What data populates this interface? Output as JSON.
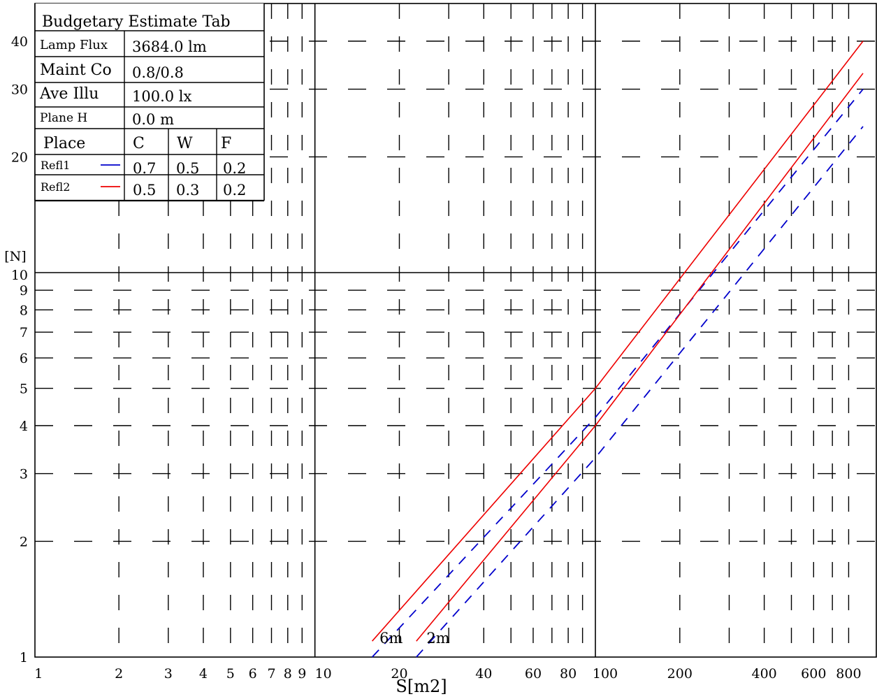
{
  "chart_data": {
    "type": "line",
    "title": "",
    "xlabel": "S[m2]",
    "ylabel": "[N]",
    "x_scale": "log",
    "y_scale": "log",
    "xlim": [
      1,
      900
    ],
    "ylim": [
      1,
      45
    ],
    "grid": true,
    "x_ticks": [
      1,
      2,
      3,
      4,
      5,
      6,
      7,
      8,
      9,
      10,
      20,
      40,
      60,
      80,
      100,
      200,
      400,
      600,
      800
    ],
    "y_ticks": [
      1,
      2,
      3,
      4,
      5,
      6,
      7,
      8,
      9,
      10,
      20,
      30,
      40
    ],
    "series": [
      {
        "name": "Refl1",
        "color": "#0000cc",
        "style": "dashed",
        "curve_label": "6m",
        "x": [
          16,
          100,
          900
        ],
        "y": [
          1,
          4.2,
          30
        ]
      },
      {
        "name": "Refl1",
        "color": "#0000cc",
        "style": "dashed",
        "curve_label": "2m",
        "x": [
          23,
          100,
          900
        ],
        "y": [
          1,
          3.3,
          24
        ]
      },
      {
        "name": "Refl2",
        "color": "#ee0000",
        "style": "solid",
        "curve_label": "6m",
        "x": [
          16,
          100,
          900
        ],
        "y": [
          1.1,
          5,
          40
        ]
      },
      {
        "name": "Refl2",
        "color": "#ee0000",
        "style": "solid",
        "curve_label": "2m",
        "x": [
          23,
          100,
          900
        ],
        "y": [
          1.1,
          4,
          33
        ]
      }
    ],
    "curve_labels": [
      {
        "text": "6m",
        "x": 17,
        "y": 1.08
      },
      {
        "text": "2m",
        "x": 25,
        "y": 1.08
      }
    ]
  },
  "legend_table": {
    "title": "Budgetary Estimate Tab",
    "rows": [
      {
        "label": "Lamp Flux",
        "value": "3684.0 lm"
      },
      {
        "label": "Maint Co",
        "value": "0.8/0.8"
      },
      {
        "label": "Ave Illu",
        "value": "100.0 lx"
      },
      {
        "label": "Plane H",
        "value": "0.0 m"
      }
    ],
    "columns": {
      "place": "Place",
      "c": "C",
      "w": "W",
      "f": "F"
    },
    "refl_rows": [
      {
        "label": "Refl1",
        "color": "#0000cc",
        "c": "0.7",
        "w": "0.5",
        "f": "0.2"
      },
      {
        "label": "Refl2",
        "color": "#ee0000",
        "c": "0.5",
        "w": "0.3",
        "f": "0.2"
      }
    ]
  }
}
